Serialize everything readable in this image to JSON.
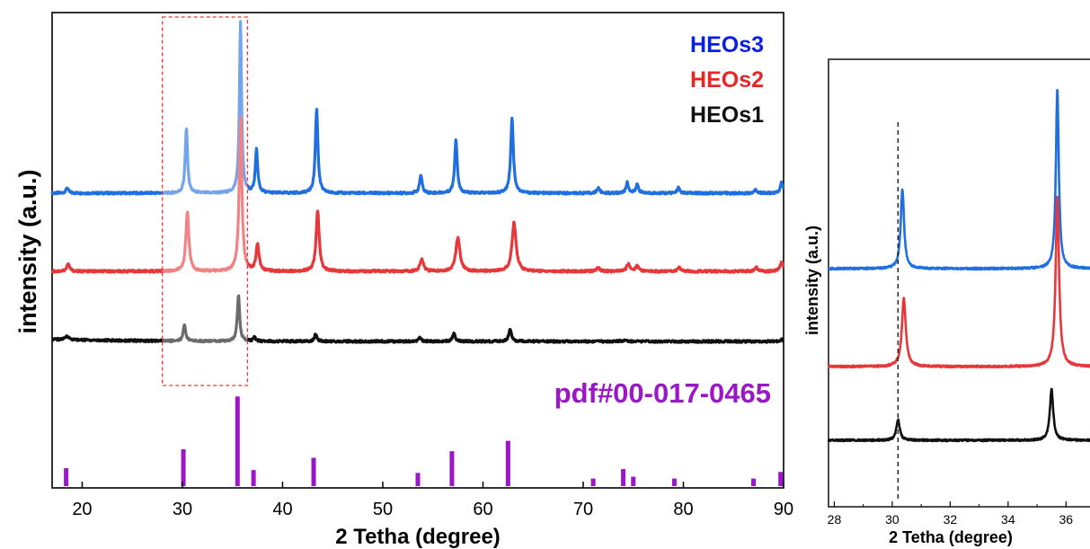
{
  "chart_data": [
    {
      "type": "line",
      "xlabel": "2 Tetha (degree)",
      "ylabel": "intensity (a.u.)",
      "xlim": [
        17,
        90
      ],
      "xticks": [
        20,
        30,
        40,
        50,
        60,
        70,
        80,
        90
      ],
      "grid": false,
      "legend_position": "top-right",
      "highlight_region": [
        28,
        36.5
      ],
      "series": [
        {
          "name": "HEOs3",
          "color": "#1f6fe0",
          "legend_color": "#0a1fe6",
          "baseline": 1.0,
          "peaks": [
            {
              "x": 18.5,
              "h": 0.03,
              "w": 0.15
            },
            {
              "x": 30.4,
              "h": 0.36,
              "w": 0.14
            },
            {
              "x": 35.8,
              "h": 0.95,
              "w": 0.13
            },
            {
              "x": 37.4,
              "h": 0.24,
              "w": 0.14
            },
            {
              "x": 43.4,
              "h": 0.47,
              "w": 0.15
            },
            {
              "x": 53.8,
              "h": 0.1,
              "w": 0.15
            },
            {
              "x": 57.3,
              "h": 0.3,
              "w": 0.15
            },
            {
              "x": 62.9,
              "h": 0.42,
              "w": 0.16
            },
            {
              "x": 71.5,
              "h": 0.03,
              "w": 0.16
            },
            {
              "x": 74.4,
              "h": 0.06,
              "w": 0.15
            },
            {
              "x": 75.4,
              "h": 0.05,
              "w": 0.15
            },
            {
              "x": 79.5,
              "h": 0.03,
              "w": 0.16
            },
            {
              "x": 87.2,
              "h": 0.02,
              "w": 0.16
            },
            {
              "x": 89.8,
              "h": 0.06,
              "w": 0.15
            }
          ]
        },
        {
          "name": "HEOs2",
          "color": "#e8373b",
          "legend_color": "#e82626",
          "baseline": 0.6,
          "peaks": [
            {
              "x": 18.6,
              "h": 0.04,
              "w": 0.18
            },
            {
              "x": 30.5,
              "h": 0.33,
              "w": 0.18
            },
            {
              "x": 35.8,
              "h": 0.85,
              "w": 0.16
            },
            {
              "x": 37.5,
              "h": 0.15,
              "w": 0.17
            },
            {
              "x": 43.5,
              "h": 0.34,
              "w": 0.18
            },
            {
              "x": 53.9,
              "h": 0.07,
              "w": 0.2
            },
            {
              "x": 57.5,
              "h": 0.19,
              "w": 0.24
            },
            {
              "x": 63.1,
              "h": 0.27,
              "w": 0.24
            },
            {
              "x": 71.5,
              "h": 0.02,
              "w": 0.2
            },
            {
              "x": 74.5,
              "h": 0.04,
              "w": 0.2
            },
            {
              "x": 75.4,
              "h": 0.03,
              "w": 0.2
            },
            {
              "x": 79.6,
              "h": 0.02,
              "w": 0.2
            },
            {
              "x": 87.3,
              "h": 0.02,
              "w": 0.2
            },
            {
              "x": 89.8,
              "h": 0.05,
              "w": 0.2
            }
          ]
        },
        {
          "name": "HEOs1",
          "color": "#111111",
          "legend_color": "#111111",
          "baseline": 0.2,
          "peaks": [
            {
              "x": 18.5,
              "h": 0.02,
              "w": 0.2
            },
            {
              "x": 30.2,
              "h": 0.09,
              "w": 0.15
            },
            {
              "x": 35.6,
              "h": 0.26,
              "w": 0.14
            },
            {
              "x": 37.2,
              "h": 0.02,
              "w": 0.15
            },
            {
              "x": 43.3,
              "h": 0.04,
              "w": 0.15
            },
            {
              "x": 53.7,
              "h": 0.02,
              "w": 0.15
            },
            {
              "x": 57.1,
              "h": 0.05,
              "w": 0.15
            },
            {
              "x": 62.7,
              "h": 0.07,
              "w": 0.16
            },
            {
              "x": 74.2,
              "h": 0.01,
              "w": 0.2
            },
            {
              "x": 89.8,
              "h": 0.01,
              "w": 0.2
            }
          ]
        }
      ],
      "reference": {
        "name": "pdf#00-017-0465",
        "color": "#9b16c8",
        "positions": [
          18.4,
          30.1,
          35.5,
          37.1,
          43.1,
          53.5,
          56.9,
          62.5,
          71.0,
          74.0,
          75.0,
          79.1,
          87.0,
          89.7
        ],
        "intensities": [
          0.19,
          0.39,
          0.95,
          0.17,
          0.3,
          0.14,
          0.37,
          0.48,
          0.08,
          0.18,
          0.1,
          0.08,
          0.08,
          0.15
        ]
      }
    },
    {
      "type": "line",
      "xlabel": "2 Tetha (degree)",
      "ylabel": "intensity (a.u.)",
      "xlim": [
        27.8,
        37.2
      ],
      "xticks": [
        28,
        30,
        32,
        34,
        36
      ],
      "grid": false,
      "reference_line_x": 30.2,
      "series": [
        {
          "name": "HEOs3",
          "color": "#1f6fe0",
          "baseline": 1.0,
          "peaks": [
            {
              "x": 30.35,
              "h": 0.42,
              "w": 0.07
            },
            {
              "x": 35.7,
              "h": 0.95,
              "w": 0.06
            }
          ]
        },
        {
          "name": "HEOs2",
          "color": "#e8373b",
          "baseline": 0.55,
          "peaks": [
            {
              "x": 30.4,
              "h": 0.36,
              "w": 0.08
            },
            {
              "x": 35.7,
              "h": 0.9,
              "w": 0.07
            }
          ]
        },
        {
          "name": "HEOs1",
          "color": "#111111",
          "baseline": 0.1,
          "peaks": [
            {
              "x": 30.2,
              "h": 0.11,
              "w": 0.07
            },
            {
              "x": 35.5,
              "h": 0.27,
              "w": 0.07
            }
          ]
        }
      ]
    }
  ]
}
